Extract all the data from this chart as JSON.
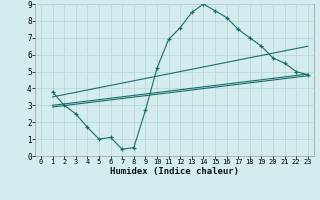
{
  "xlabel": "Humidex (Indice chaleur)",
  "background_color": "#d4ecee",
  "grid_color": "#b8d8d8",
  "line_color": "#1a6e6a",
  "xlim": [
    -0.5,
    23.5
  ],
  "ylim": [
    0,
    9
  ],
  "xticks": [
    0,
    1,
    2,
    3,
    4,
    5,
    6,
    7,
    8,
    9,
    10,
    11,
    12,
    13,
    14,
    15,
    16,
    17,
    18,
    19,
    20,
    21,
    22,
    23
  ],
  "yticks": [
    0,
    1,
    2,
    3,
    4,
    5,
    6,
    7,
    8,
    9
  ],
  "line1_x": [
    1,
    2,
    3,
    4,
    5,
    6,
    7,
    8,
    9,
    10,
    11,
    12,
    13,
    14,
    15,
    16,
    17,
    18,
    19,
    20,
    21,
    22,
    23
  ],
  "line1_y": [
    3.8,
    3.0,
    2.5,
    1.7,
    1.0,
    1.1,
    0.4,
    0.5,
    2.7,
    5.2,
    6.9,
    7.6,
    8.5,
    9.0,
    8.6,
    8.2,
    7.5,
    7.0,
    6.5,
    5.8,
    5.5,
    5.0,
    4.8
  ],
  "line2_x": [
    1,
    23
  ],
  "line2_y": [
    3.5,
    6.5
  ],
  "line3_x": [
    1,
    23
  ],
  "line3_y": [
    3.0,
    4.85
  ],
  "line4_x": [
    1,
    23
  ],
  "line4_y": [
    2.9,
    4.75
  ]
}
